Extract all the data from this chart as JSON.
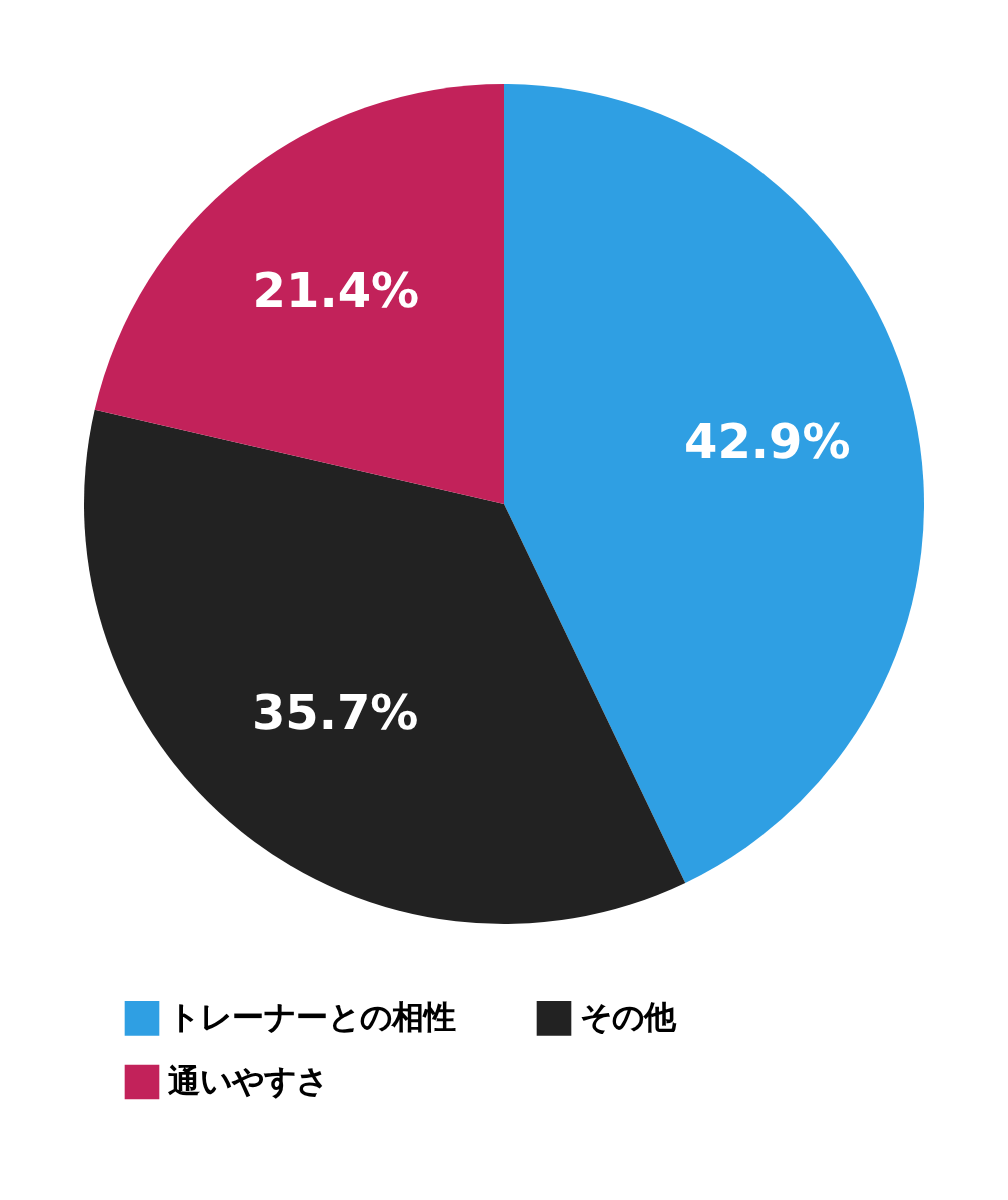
{
  "chart_data": {
    "type": "pie",
    "categories": [
      "トレーナーとの相性",
      "その他",
      "通いやすさ"
    ],
    "values": [
      42.9,
      35.7,
      21.4
    ],
    "colors": [
      "#2f9fe3",
      "#222222",
      "#c2225a"
    ],
    "value_labels": [
      "42.9%",
      "35.7%",
      "21.4%"
    ],
    "legend": "bottom"
  }
}
